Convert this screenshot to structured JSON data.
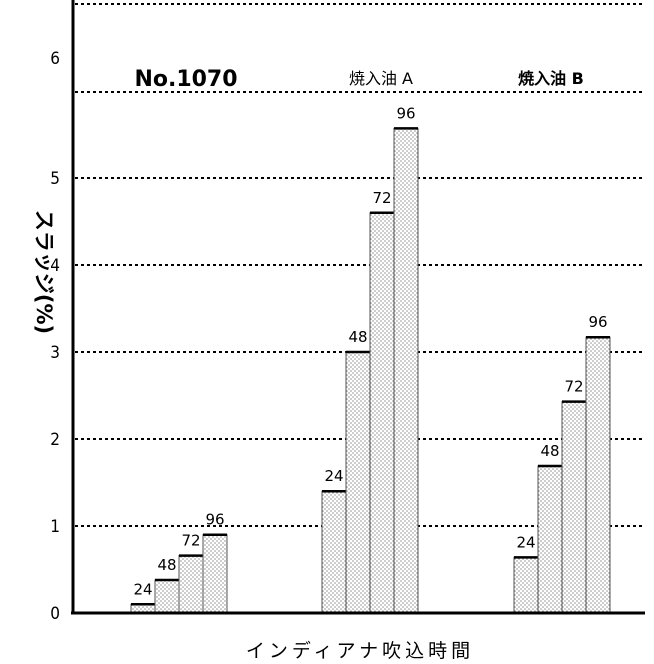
{
  "chart_data": {
    "type": "bar",
    "ylabel": "スラッジ(%)",
    "xlabel": "インディアナ吹込時間",
    "ylim": [
      0,
      6.5
    ],
    "yticks": [
      0,
      1,
      2,
      3,
      4,
      5,
      6
    ],
    "grid": true,
    "groups": [
      {
        "label": "No.1070",
        "bar_labels": [
          "24",
          "48",
          "72",
          "96"
        ],
        "values": [
          0.1,
          0.38,
          0.66,
          0.9
        ]
      },
      {
        "label": "焼入油 A",
        "bar_labels": [
          "24",
          "48",
          "72",
          "96"
        ],
        "values": [
          1.4,
          3.0,
          4.6,
          5.57
        ]
      },
      {
        "label": "焼入油 B",
        "bar_labels": [
          "24",
          "48",
          "72",
          "96"
        ],
        "values": [
          0.64,
          1.69,
          2.43,
          3.17
        ]
      }
    ]
  }
}
